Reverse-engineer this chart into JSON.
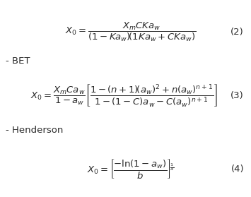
{
  "bg_color": "#ffffff",
  "text_color": "#2a2a2a",
  "label_bet": "- BET",
  "label_henderson": "- Henderson",
  "eq2_num": "(2)",
  "eq3_num": "(3)",
  "eq4_num": "(4)",
  "figsize": [
    3.55,
    2.79
  ],
  "dpi": 100,
  "fs": 9.5
}
